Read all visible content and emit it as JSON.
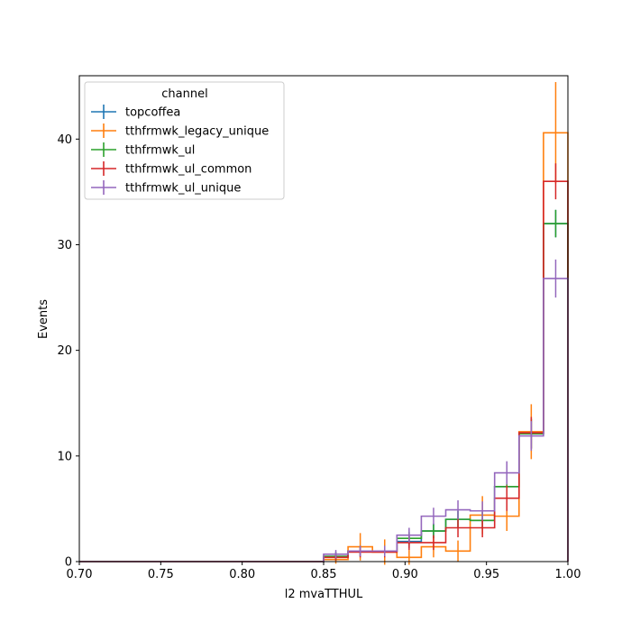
{
  "chart_data": {
    "type": "step-histogram",
    "xlabel": "l2 mvaTTHUL",
    "ylabel": "Events",
    "xlim": [
      0.7,
      1.0
    ],
    "ylim": [
      0,
      46
    ],
    "x_ticks": [
      0.7,
      0.75,
      0.8,
      0.85,
      0.9,
      0.95,
      1.0
    ],
    "x_tick_labels": [
      "0.70",
      "0.75",
      "0.80",
      "0.85",
      "0.90",
      "0.95",
      "1.00"
    ],
    "y_ticks": [
      0,
      10,
      20,
      30,
      40
    ],
    "y_tick_labels": [
      "0",
      "10",
      "20",
      "30",
      "40"
    ],
    "bin_edges": [
      0.7,
      0.715,
      0.73,
      0.745,
      0.76,
      0.775,
      0.79,
      0.805,
      0.82,
      0.835,
      0.85,
      0.865,
      0.88,
      0.895,
      0.91,
      0.925,
      0.94,
      0.955,
      0.97,
      0.985,
      1.0
    ],
    "legend": {
      "title": "channel",
      "location": "upper left"
    },
    "series": [
      {
        "name": "topcoffea",
        "color": "#1f77b4",
        "values": [
          0,
          0,
          0,
          0,
          0,
          0,
          0,
          0,
          0,
          0,
          0.5,
          1.0,
          1.0,
          1.9,
          2.9,
          4.0,
          3.9,
          7.1,
          12.1,
          32.0
        ],
        "errors": [
          0,
          0,
          0,
          0,
          0,
          0,
          0,
          0,
          0,
          0,
          0.4,
          0.5,
          0.5,
          0.6,
          0.7,
          0.8,
          0.8,
          1.1,
          1.4,
          1.3
        ]
      },
      {
        "name": "tthfrmwk_legacy_unique",
        "color": "#ff7f0e",
        "values": [
          0,
          0,
          0,
          0,
          0,
          0,
          0,
          0,
          0,
          0,
          0.2,
          1.4,
          0.9,
          0.4,
          1.4,
          1.0,
          4.4,
          4.3,
          12.3,
          40.6
        ],
        "errors": [
          0,
          0,
          0,
          0,
          0,
          0,
          0,
          0,
          0,
          0,
          0.4,
          1.3,
          1.2,
          0.7,
          1.0,
          1.0,
          1.8,
          1.4,
          2.6,
          4.8
        ]
      },
      {
        "name": "tthfrmwk_ul",
        "color": "#2ca02c",
        "values": [
          0,
          0,
          0,
          0,
          0,
          0,
          0,
          0,
          0,
          0,
          0.5,
          1.0,
          1.0,
          2.2,
          2.9,
          4.0,
          3.9,
          7.1,
          12.1,
          32.0
        ],
        "errors": [
          0,
          0,
          0,
          0,
          0,
          0,
          0,
          0,
          0,
          0,
          0.4,
          0.5,
          0.5,
          0.6,
          0.7,
          0.8,
          0.8,
          1.1,
          1.4,
          1.3
        ]
      },
      {
        "name": "tthfrmwk_ul_common",
        "color": "#d62728",
        "values": [
          0,
          0,
          0,
          0,
          0,
          0,
          0,
          0,
          0,
          0,
          0.4,
          0.9,
          0.9,
          1.8,
          1.8,
          3.2,
          3.2,
          6.0,
          12.2,
          36.0
        ],
        "errors": [
          0,
          0,
          0,
          0,
          0,
          0,
          0,
          0,
          0,
          0,
          0.3,
          0.5,
          0.5,
          0.7,
          0.7,
          0.9,
          0.9,
          1.2,
          1.5,
          1.7
        ]
      },
      {
        "name": "tthfrmwk_ul_unique",
        "color": "#9467bd",
        "values": [
          0,
          0,
          0,
          0,
          0,
          0,
          0,
          0,
          0,
          0,
          0.7,
          1.0,
          1.0,
          2.5,
          4.3,
          4.9,
          4.8,
          8.4,
          11.9,
          26.8
        ],
        "errors": [
          0,
          0,
          0,
          0,
          0,
          0,
          0,
          0,
          0,
          0,
          0.4,
          0.5,
          0.5,
          0.7,
          0.8,
          0.9,
          0.9,
          1.1,
          1.4,
          1.8
        ]
      }
    ]
  }
}
